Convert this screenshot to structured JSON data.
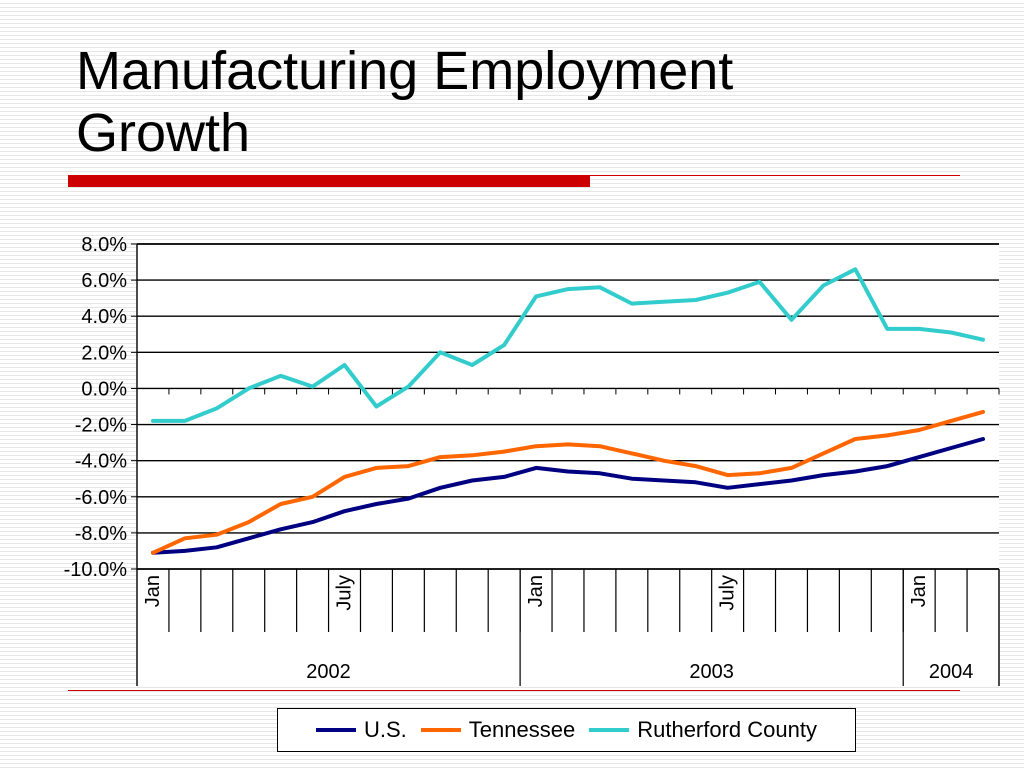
{
  "slide": {
    "title_line1": "Manufacturing Employment",
    "title_line2": "Growth"
  },
  "chart_data": {
    "type": "line",
    "ylim": [
      -10,
      8
    ],
    "yticks": [
      8,
      6,
      4,
      2,
      0,
      -2,
      -4,
      -6,
      -8,
      -10
    ],
    "ytick_labels": [
      "8.0%",
      "6.0%",
      "4.0%",
      "2.0%",
      "0.0%",
      "-2.0%",
      "-4.0%",
      "-6.0%",
      "-8.0%",
      "-10.0%"
    ],
    "month_labels": [
      {
        "index": 0,
        "label": "Jan"
      },
      {
        "index": 6,
        "label": "July"
      },
      {
        "index": 12,
        "label": "Jan"
      },
      {
        "index": 18,
        "label": "July"
      },
      {
        "index": 24,
        "label": "Jan"
      }
    ],
    "year_groups": [
      {
        "label": "2002",
        "start": 0,
        "count": 12
      },
      {
        "label": "2003",
        "start": 12,
        "count": 12
      },
      {
        "label": "2004",
        "start": 24,
        "count": 3
      }
    ],
    "grid": true,
    "legend_position": "bottom",
    "series": [
      {
        "name": "U.S.",
        "color": "#000080",
        "values": [
          -9.1,
          -9.0,
          -8.8,
          -8.3,
          -7.8,
          -7.4,
          -6.8,
          -6.4,
          -6.1,
          -5.5,
          -5.1,
          -4.9,
          -4.4,
          -4.6,
          -4.7,
          -5.0,
          -5.1,
          -5.2,
          -5.5,
          -5.3,
          -5.1,
          -4.8,
          -4.6,
          -4.3,
          -3.8,
          -3.3,
          -2.8
        ]
      },
      {
        "name": "Tennessee",
        "color": "#ff6600",
        "values": [
          -9.1,
          -8.3,
          -8.1,
          -7.4,
          -6.4,
          -6.0,
          -4.9,
          -4.4,
          -4.3,
          -3.8,
          -3.7,
          -3.5,
          -3.2,
          -3.1,
          -3.2,
          -3.6,
          -4.0,
          -4.3,
          -4.8,
          -4.7,
          -4.4,
          -3.6,
          -2.8,
          -2.6,
          -2.3,
          -1.8,
          -1.3
        ]
      },
      {
        "name": "Rutherford County",
        "color": "#33cccc",
        "values": [
          -1.8,
          -1.8,
          -1.1,
          0.0,
          0.7,
          0.1,
          1.3,
          -1.0,
          0.1,
          2.0,
          1.3,
          2.4,
          5.1,
          5.5,
          5.6,
          4.7,
          4.8,
          4.9,
          5.3,
          5.9,
          3.8,
          5.7,
          6.6,
          3.3,
          3.3,
          3.1,
          2.7
        ]
      }
    ]
  }
}
